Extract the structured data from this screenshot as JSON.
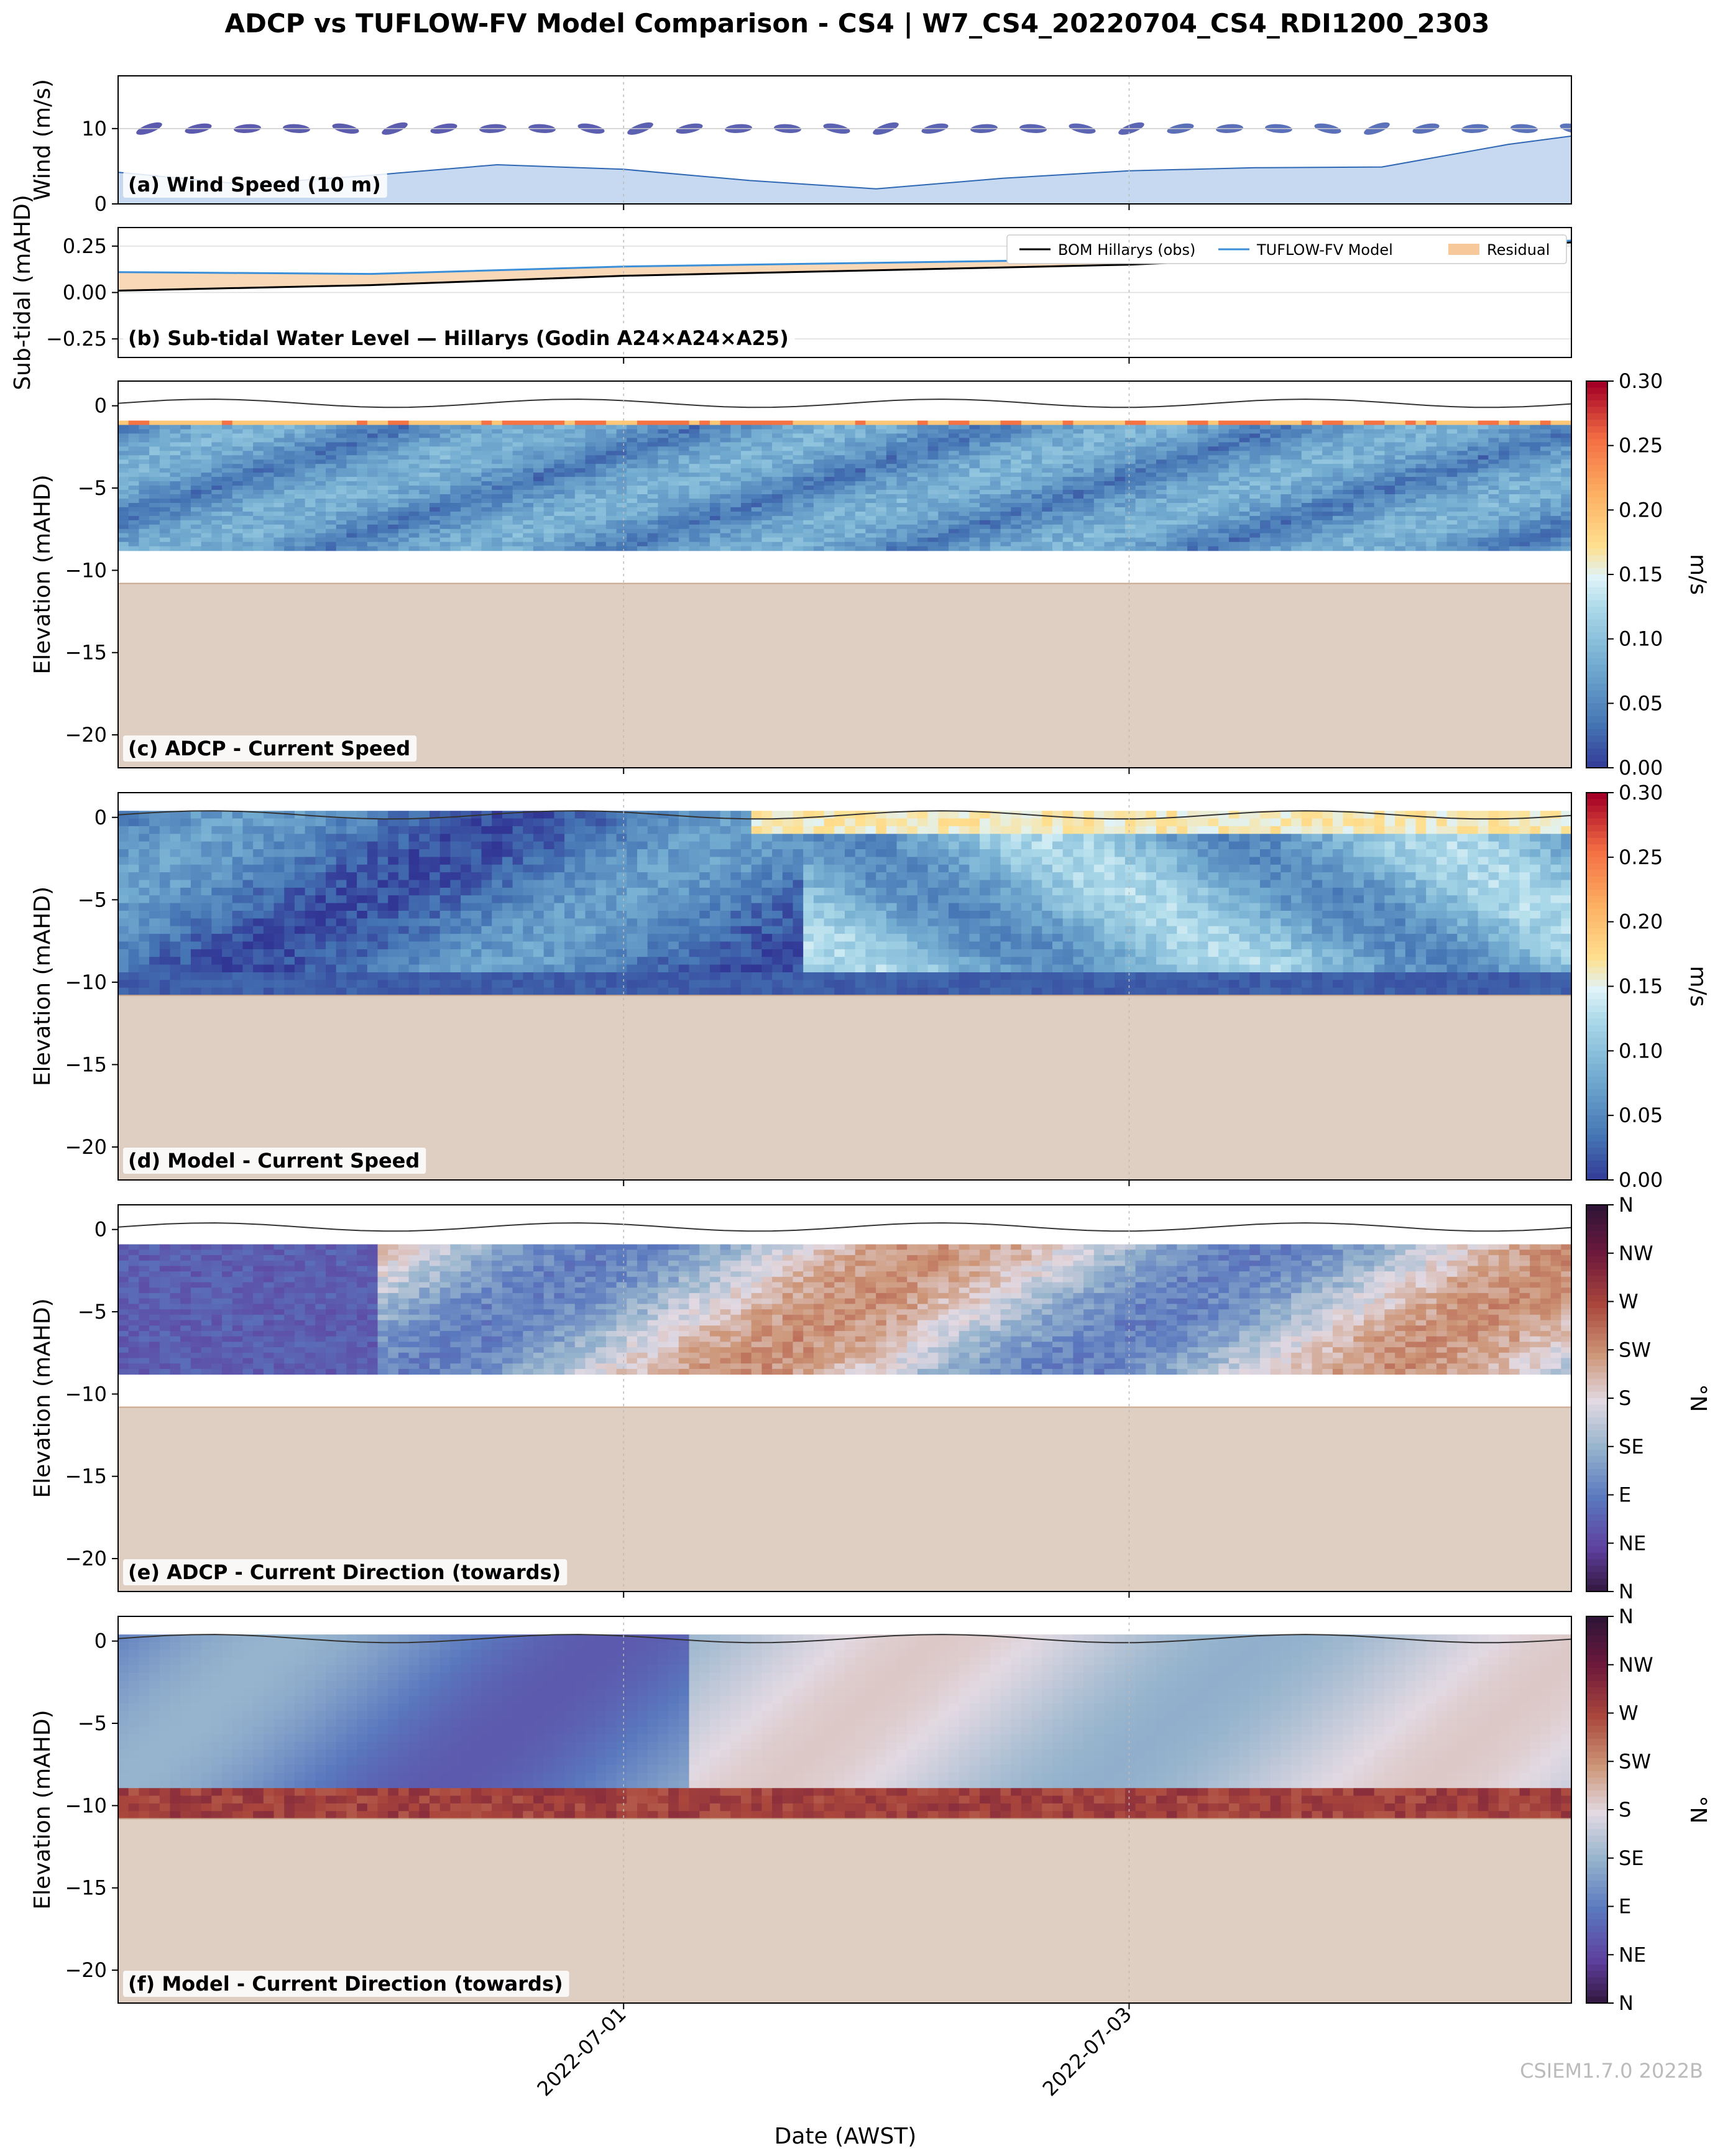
{
  "figure": {
    "title": "ADCP vs TUFLOW-FV Model Comparison - CS4 | W7_CS4_20220704_CS4_RDI1200_2303",
    "xlabel": "Date (AWST)",
    "watermark": "CSIEM1.7.0 2022B",
    "x_ticks": [
      "2022-07-01",
      "2022-07-03"
    ],
    "colors": {
      "wind_fill": "#c6d9f0",
      "wind_line": "#2e67b3",
      "bom_line": "#000000",
      "model_line": "#3a8fd8",
      "residual_fill": "#f6c89a",
      "seabed": "#dfcfc2"
    }
  },
  "chart_data": [
    {
      "id": "a",
      "type": "area",
      "panel_label": "(a) Wind Speed (10 m)",
      "ylabel": "Wind (m/s)",
      "ylim": [
        0,
        17
      ],
      "yticks": [
        0,
        10
      ],
      "x": [
        "2022-06-29 00:00",
        "2022-06-29 12:00",
        "2022-06-30 00:00",
        "2022-06-30 12:00",
        "2022-07-01 00:00",
        "2022-07-01 12:00",
        "2022-07-02 00:00",
        "2022-07-02 12:00",
        "2022-07-03 00:00",
        "2022-07-03 12:00",
        "2022-07-04 00:00",
        "2022-07-04 12:00",
        "2022-07-04 18:00"
      ],
      "series": [
        {
          "values": [
            4.2,
            2.6,
            3.8,
            5.2,
            4.6,
            3.1,
            2.0,
            3.4,
            4.4,
            4.8,
            4.9,
            7.9,
            9.0
          ]
        }
      ],
      "wind_direction_arrows": "present (drawn as direction markers above the area)"
    },
    {
      "id": "b",
      "type": "line",
      "panel_label": "(b) Sub-tidal Water Level — Hillarys (Godin A24×A24×A25)",
      "ylabel": "Sub-tidal (mAHD)",
      "ylim": [
        -0.35,
        0.35
      ],
      "yticks": [
        -0.25,
        0.0,
        0.25
      ],
      "legend": "top-right",
      "x": [
        "2022-06-29 00:00",
        "2022-06-30 00:00",
        "2022-07-01 00:00",
        "2022-07-02 00:00",
        "2022-07-03 00:00",
        "2022-07-04 00:00",
        "2022-07-04 18:00"
      ],
      "series": [
        {
          "name": "BOM Hillarys (obs)",
          "values": [
            0.01,
            0.04,
            0.09,
            0.12,
            0.15,
            0.21,
            0.27
          ]
        },
        {
          "name": "TUFLOW-FV Model",
          "values": [
            0.11,
            0.1,
            0.14,
            0.16,
            0.18,
            0.21,
            0.28
          ]
        },
        {
          "name": "Residual",
          "values": [
            0.1,
            0.06,
            0.05,
            0.04,
            0.03,
            0.0,
            0.01
          ]
        }
      ]
    },
    {
      "id": "c",
      "type": "heatmap",
      "panel_label": "(c) ADCP - Current Speed",
      "ylabel": "Elevation (mAHD)",
      "ylim": [
        -22,
        1.5
      ],
      "yticks": [
        0,
        -5,
        -10,
        -15,
        -20
      ],
      "colorbar": {
        "label": "m/s",
        "min": 0.0,
        "max": 0.3,
        "ticks": [
          "0.00",
          "0.05",
          "0.10",
          "0.15",
          "0.20",
          "0.25",
          "0.30"
        ],
        "colormap": "RdYlBu_r"
      },
      "data_extent_elevation": [
        -8.8,
        -0.9
      ],
      "seabed_elevation": -10.8
    },
    {
      "id": "d",
      "type": "heatmap",
      "panel_label": "(d) Model - Current Speed",
      "ylabel": "Elevation (mAHD)",
      "ylim": [
        -22,
        1.5
      ],
      "yticks": [
        0,
        -5,
        -10,
        -15,
        -20
      ],
      "colorbar": {
        "label": "m/s",
        "min": 0.0,
        "max": 0.3,
        "ticks": [
          "0.00",
          "0.05",
          "0.10",
          "0.15",
          "0.20",
          "0.25",
          "0.30"
        ],
        "colormap": "RdYlBu_r"
      },
      "data_extent_elevation": [
        -10.8,
        0.4
      ],
      "seabed_elevation": -10.8
    },
    {
      "id": "e",
      "type": "heatmap",
      "panel_label": "(e) ADCP - Current Direction (towards)",
      "ylabel": "Elevation (mAHD)",
      "ylim": [
        -22,
        1.5
      ],
      "yticks": [
        0,
        -5,
        -10,
        -15,
        -20
      ],
      "colorbar": {
        "label": "°N",
        "ticks": [
          "N",
          "NE",
          "E",
          "SE",
          "S",
          "SW",
          "W",
          "NW",
          "N"
        ],
        "colormap": "twilight_shifted"
      },
      "data_extent_elevation": [
        -8.8,
        -0.9
      ],
      "seabed_elevation": -10.8
    },
    {
      "id": "f",
      "type": "heatmap",
      "panel_label": "(f) Model - Current Direction (towards)",
      "ylabel": "Elevation (mAHD)",
      "ylim": [
        -22,
        1.5
      ],
      "yticks": [
        0,
        -5,
        -10,
        -15,
        -20
      ],
      "colorbar": {
        "label": "°N",
        "ticks": [
          "N",
          "NE",
          "E",
          "SE",
          "S",
          "SW",
          "W",
          "NW",
          "N"
        ],
        "colormap": "twilight_shifted"
      },
      "data_extent_elevation": [
        -10.8,
        0.4
      ],
      "seabed_elevation": -10.8
    }
  ]
}
